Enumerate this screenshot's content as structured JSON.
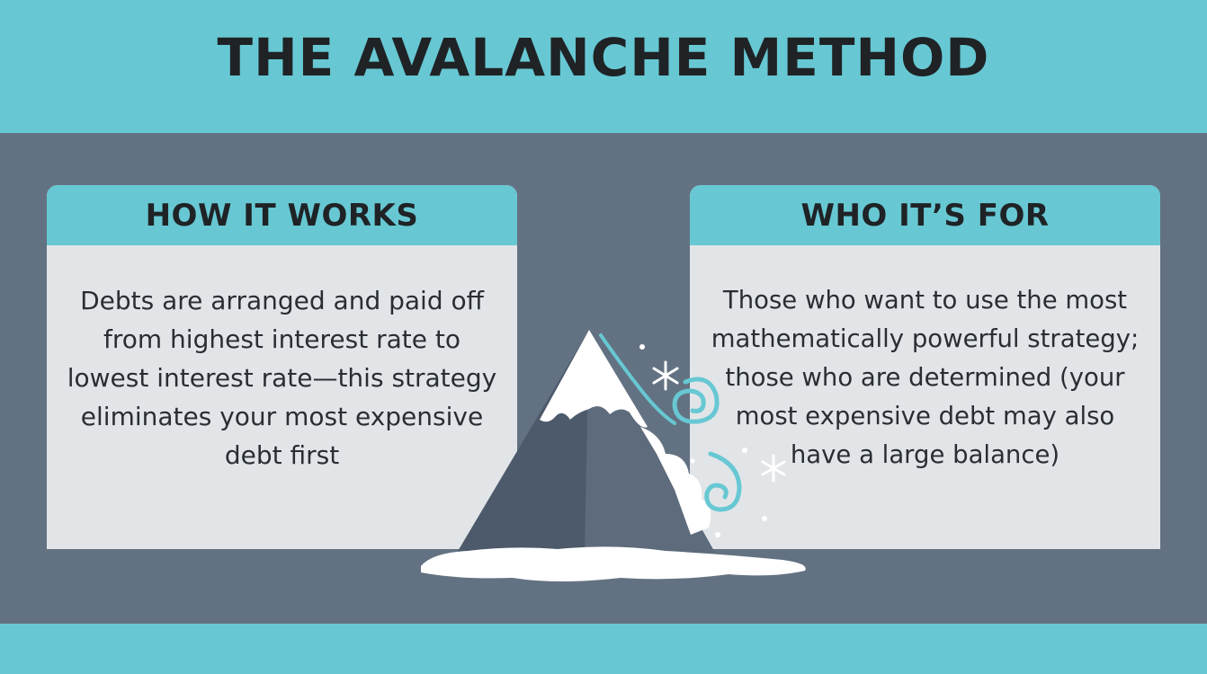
{
  "header": {
    "title": "THE AVALANCHE METHOD"
  },
  "cards": [
    {
      "title": "HOW IT WORKS",
      "body": "Debts are arranged and paid off from highest interest rate to lowest interest rate—this strategy eliminates your most expensive debt first"
    },
    {
      "title": "WHO IT’S FOR",
      "body": "Those who want to use the most mathematically powerful strategy; those who are determined (your most expensive debt may also have a large balance)"
    }
  ],
  "colors": {
    "accent": "#67c8d3",
    "background": "#637282",
    "card": "#e2e5e8",
    "text": "#1f2326"
  },
  "illustration": "snowy-mountain-avalanche"
}
